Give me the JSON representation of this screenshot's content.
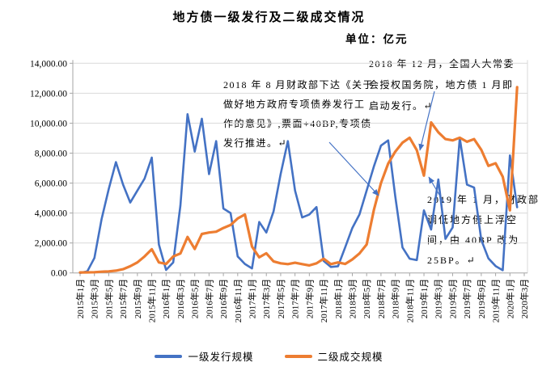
{
  "chart": {
    "title": "地方债一级发行及二级成交情况",
    "unit_label": "单位：亿元"
  },
  "legend": {
    "items": [
      {
        "label": "一级发行规模",
        "color": "#4472C4"
      },
      {
        "label": "二级成交规模",
        "color": "#ED7D31"
      }
    ]
  },
  "annotations": [
    {
      "text": "2018 年 8 月财政部下达《关于\n做好地方政府专项债券发行工\n作的意见》,票面+40BP,专项债\n发行推进。↵"
    },
    {
      "text": "2018 年 12 月，全国人大常委\n会授权国务院，地方债 1 月即\n启动发行。↵"
    },
    {
      "text": "2019 年 1 月，财政部\n调低地方债上浮空\n间，由 40BP 改为\n25BP。↵"
    }
  ],
  "chart_data": {
    "type": "line",
    "title": "地方债一级发行及二级成交情况",
    "subtitle": "单位：亿元",
    "xlabel": "",
    "ylabel": "",
    "ylim": [
      0,
      14000
    ],
    "ytick_step": 2000,
    "grid": true,
    "legend_position": "bottom",
    "y_tick_labels": [
      "0.00",
      "2,000.00",
      "4,000.00",
      "6,000.00",
      "8,000.00",
      "10,000.00",
      "12,000.00",
      "14,000.00"
    ],
    "x_tick_labels": [
      "2015年1月",
      "2015年3月",
      "2015年5月",
      "2015年7月",
      "2015年9月",
      "2015年11月",
      "2016年1月",
      "2016年3月",
      "2016年5月",
      "2016年7月",
      "2016年9月",
      "2016年11月",
      "2017年1月",
      "2017年3月",
      "2017年5月",
      "2017年7月",
      "2017年9月",
      "2017年11月",
      "2018年1月",
      "2018年3月",
      "2018年5月",
      "2018年7月",
      "2018年9月",
      "2018年11月",
      "2019年1月",
      "2019年3月",
      "2019年5月",
      "2019年7月",
      "2019年9月",
      "2019年11月",
      "2020年1月",
      "2020年3月"
    ],
    "categories": [
      "2015年1月",
      "2015年2月",
      "2015年3月",
      "2015年4月",
      "2015年5月",
      "2015年6月",
      "2015年7月",
      "2015年8月",
      "2015年9月",
      "2015年10月",
      "2015年11月",
      "2015年12月",
      "2016年1月",
      "2016年2月",
      "2016年3月",
      "2016年4月",
      "2016年5月",
      "2016年6月",
      "2016年7月",
      "2016年8月",
      "2016年9月",
      "2016年10月",
      "2016年11月",
      "2016年12月",
      "2017年1月",
      "2017年2月",
      "2017年3月",
      "2017年4月",
      "2017年5月",
      "2017年6月",
      "2017年7月",
      "2017年8月",
      "2017年9月",
      "2017年10月",
      "2017年11月",
      "2017年12月",
      "2018年1月",
      "2018年2月",
      "2018年3月",
      "2018年4月",
      "2018年5月",
      "2018年6月",
      "2018年7月",
      "2018年8月",
      "2018年9月",
      "2018年10月",
      "2018年11月",
      "2018年12月",
      "2019年1月",
      "2019年2月",
      "2019年3月",
      "2019年4月",
      "2019年5月",
      "2019年6月",
      "2019年7月",
      "2019年8月",
      "2019年9月",
      "2019年10月",
      "2019年11月",
      "2019年12月",
      "2020年1月",
      "2020年2月"
    ],
    "series": [
      {
        "name": "一级发行规模",
        "color": "#4472C4",
        "values": [
          0,
          100,
          1000,
          3600,
          5600,
          7400,
          5900,
          4700,
          5500,
          6300,
          7700,
          1900,
          200,
          700,
          4500,
          10600,
          8100,
          10300,
          6600,
          8800,
          4300,
          4000,
          1100,
          600,
          300,
          3400,
          2700,
          4100,
          6600,
          8800,
          5500,
          3700,
          3900,
          4400,
          800,
          400,
          450,
          1700,
          3000,
          3900,
          5500,
          7100,
          8500,
          8850,
          5100,
          1700,
          950,
          860,
          4180,
          2900,
          6245,
          2270,
          3040,
          9000,
          5900,
          5700,
          2200,
          970,
          460,
          180,
          7850,
          4380
        ]
      },
      {
        "name": "二级成交规模",
        "color": "#ED7D31",
        "values": [
          30,
          40,
          50,
          80,
          100,
          150,
          250,
          450,
          700,
          1100,
          1580,
          700,
          600,
          1100,
          1300,
          2400,
          1600,
          2600,
          2700,
          2750,
          3000,
          3200,
          3640,
          3900,
          1760,
          1040,
          1310,
          770,
          640,
          590,
          680,
          590,
          500,
          640,
          950,
          590,
          700,
          600,
          900,
          1300,
          1900,
          4200,
          6000,
          7300,
          8100,
          8700,
          9030,
          8200,
          6500,
          10050,
          9390,
          8940,
          8850,
          9030,
          8760,
          8940,
          8220,
          7150,
          7325,
          6430,
          4180,
          12400
        ]
      }
    ],
    "colors": {
      "gridline": "#D9D9D9",
      "axis": "#A6A6A6",
      "leader_arrow": "#4472C4"
    }
  }
}
